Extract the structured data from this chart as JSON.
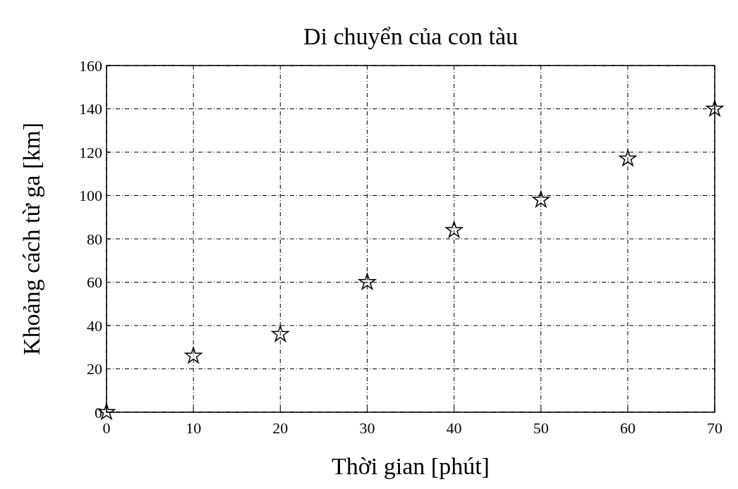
{
  "chart_data": {
    "type": "scatter",
    "title": "Di chuyển của con tàu",
    "xlabel": "Thời gian [phút]",
    "ylabel": "Khoảng cách từ ga [km]",
    "x": [
      0,
      10,
      20,
      30,
      40,
      50,
      60,
      70
    ],
    "series": [
      {
        "color": "#000000",
        "values": [
          0,
          26,
          36,
          60,
          84,
          98,
          117,
          140
        ]
      }
    ],
    "xlim": [
      0,
      70
    ],
    "xticks": [
      0,
      10,
      20,
      30,
      40,
      50,
      60,
      70
    ],
    "ylim": [
      0,
      160
    ],
    "yticks": [
      0,
      20,
      40,
      60,
      80,
      100,
      120,
      140,
      160
    ],
    "grid": true,
    "marker": "star"
  }
}
